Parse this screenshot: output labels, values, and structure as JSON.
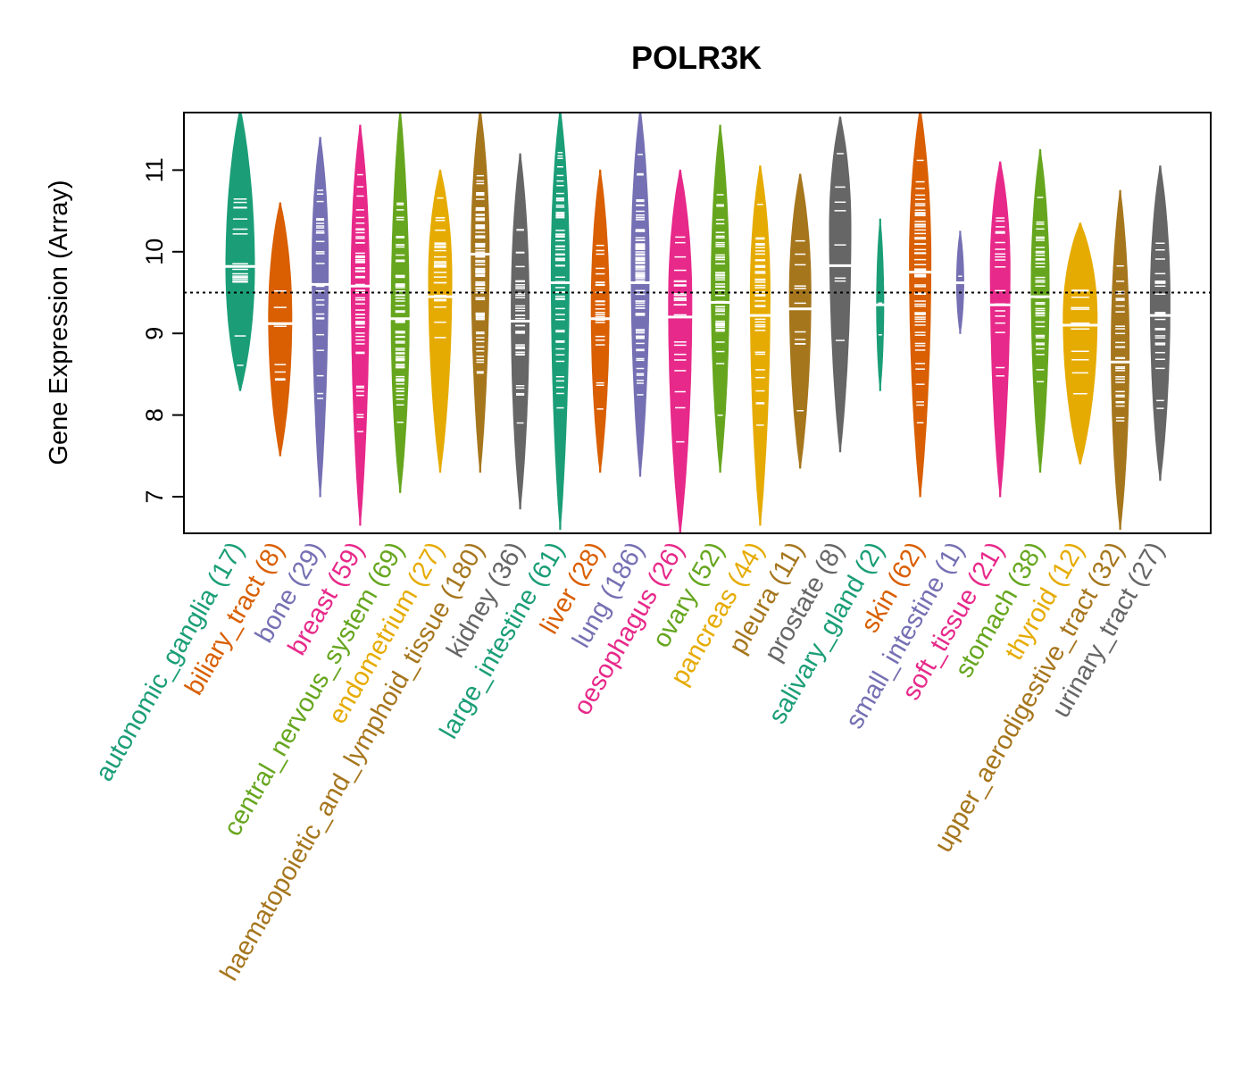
{
  "chart_data": {
    "type": "violin",
    "title": "POLR3K",
    "xlabel": "",
    "ylabel": "Gene Expression (Array)",
    "ylim": [
      6.55,
      11.75
    ],
    "yticks": [
      7,
      8,
      9,
      10,
      11
    ],
    "reference_line": 9.5,
    "categories": [
      {
        "name": "autonomic_ganglia",
        "n": 17,
        "label": "autonomic_ganglia (17)",
        "color": "#1B9E77",
        "min": 8.3,
        "max": 11.75,
        "median": 9.82,
        "mode": 9.8,
        "width": 16
      },
      {
        "name": "biliary_tract",
        "n": 8,
        "label": "biliary_tract (8)",
        "color": "#D95F02",
        "min": 7.5,
        "max": 10.6,
        "median": 9.12,
        "mode": 9.2,
        "width": 13
      },
      {
        "name": "bone",
        "n": 29,
        "label": "bone (29)",
        "color": "#7570B3",
        "min": 7.0,
        "max": 11.4,
        "median": 9.6,
        "mode": 9.9,
        "width": 9
      },
      {
        "name": "breast",
        "n": 59,
        "label": "breast (59)",
        "color": "#E7298A",
        "min": 6.65,
        "max": 11.55,
        "median": 9.58,
        "mode": 9.7,
        "width": 10
      },
      {
        "name": "central_nervous_system",
        "n": 69,
        "label": "central_nervous_system (69)",
        "color": "#66A61E",
        "min": 7.05,
        "max": 11.75,
        "median": 9.18,
        "mode": 9.2,
        "width": 10
      },
      {
        "name": "endometrium",
        "n": 27,
        "label": "endometrium (27)",
        "color": "#E6AB02",
        "min": 7.3,
        "max": 11.0,
        "median": 9.45,
        "mode": 9.7,
        "width": 13
      },
      {
        "name": "haematopoietic_and_lymphoid_tissue",
        "n": 180,
        "label": "haematopoietic_and_lymphoid_tissue (180)",
        "color": "#A6761D",
        "min": 7.3,
        "max": 11.75,
        "median": 9.97,
        "mode": 10.0,
        "width": 10
      },
      {
        "name": "kidney",
        "n": 36,
        "label": "kidney (36)",
        "color": "#666666",
        "min": 6.85,
        "max": 11.2,
        "median": 9.15,
        "mode": 9.3,
        "width": 10
      },
      {
        "name": "large_intestine",
        "n": 61,
        "label": "large_intestine (61)",
        "color": "#1B9E77",
        "min": 6.6,
        "max": 11.75,
        "median": 9.62,
        "mode": 9.8,
        "width": 10
      },
      {
        "name": "liver",
        "n": 28,
        "label": "liver (28)",
        "color": "#D95F02",
        "min": 7.3,
        "max": 11.0,
        "median": 9.18,
        "mode": 9.3,
        "width": 10
      },
      {
        "name": "lung",
        "n": 186,
        "label": "lung (186)",
        "color": "#7570B3",
        "min": 7.25,
        "max": 11.75,
        "median": 9.62,
        "mode": 9.8,
        "width": 10
      },
      {
        "name": "oesophagus",
        "n": 26,
        "label": "oesophagus (26)",
        "color": "#E7298A",
        "min": 6.55,
        "max": 11.0,
        "median": 9.2,
        "mode": 9.4,
        "width": 13
      },
      {
        "name": "ovary",
        "n": 52,
        "label": "ovary (52)",
        "color": "#66A61E",
        "min": 7.3,
        "max": 11.55,
        "median": 9.38,
        "mode": 9.6,
        "width": 10
      },
      {
        "name": "pancreas",
        "n": 44,
        "label": "pancreas (44)",
        "color": "#E6AB02",
        "min": 6.65,
        "max": 11.05,
        "median": 9.22,
        "mode": 9.5,
        "width": 11
      },
      {
        "name": "pleura",
        "n": 11,
        "label": "pleura (11)",
        "color": "#A6761D",
        "min": 7.35,
        "max": 10.95,
        "median": 9.3,
        "mode": 9.5,
        "width": 12
      },
      {
        "name": "prostate",
        "n": 8,
        "label": "prostate (8)",
        "color": "#666666",
        "min": 7.55,
        "max": 11.65,
        "median": 9.83,
        "mode": 10.3,
        "width": 12
      },
      {
        "name": "salivary_gland",
        "n": 2,
        "label": "salivary_gland (2)",
        "color": "#1B9E77",
        "min": 8.3,
        "max": 10.4,
        "median": 9.35,
        "mode": 9.35,
        "width": 4
      },
      {
        "name": "skin",
        "n": 62,
        "label": "skin (62)",
        "color": "#D95F02",
        "min": 7.0,
        "max": 11.75,
        "median": 9.75,
        "mode": 9.9,
        "width": 12
      },
      {
        "name": "small_intestine",
        "n": 1,
        "label": "small_intestine (1)",
        "color": "#7570B3",
        "min": 9.0,
        "max": 10.25,
        "median": 9.62,
        "mode": 9.62,
        "width": 4
      },
      {
        "name": "soft_tissue",
        "n": 21,
        "label": "soft_tissue (21)",
        "color": "#E7298A",
        "min": 7.0,
        "max": 11.1,
        "median": 9.35,
        "mode": 9.8,
        "width": 11
      },
      {
        "name": "stomach",
        "n": 38,
        "label": "stomach (38)",
        "color": "#66A61E",
        "min": 7.3,
        "max": 11.25,
        "median": 9.45,
        "mode": 9.6,
        "width": 10
      },
      {
        "name": "thyroid",
        "n": 12,
        "label": "thyroid (12)",
        "color": "#E6AB02",
        "min": 7.4,
        "max": 10.35,
        "median": 9.1,
        "mode": 9.2,
        "width": 19
      },
      {
        "name": "upper_aerodigestive_tract",
        "n": 32,
        "label": "upper_aerodigestive_tract (32)",
        "color": "#A6761D",
        "min": 6.6,
        "max": 10.75,
        "median": 8.65,
        "mode": 8.8,
        "width": 10
      },
      {
        "name": "urinary_tract",
        "n": 27,
        "label": "urinary_tract (27)",
        "color": "#666666",
        "min": 7.2,
        "max": 11.05,
        "median": 9.22,
        "mode": 9.4,
        "width": 11
      }
    ]
  }
}
